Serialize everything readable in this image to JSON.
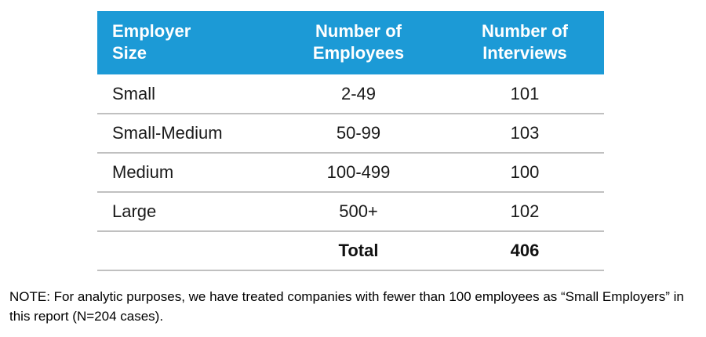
{
  "chart_data": {
    "type": "table",
    "columns": [
      "Employer Size",
      "Number of Employees",
      "Number of Interviews"
    ],
    "rows": [
      {
        "employer_size": "Small",
        "number_of_employees": "2-49",
        "number_of_interviews": "101"
      },
      {
        "employer_size": "Small-Medium",
        "number_of_employees": "50-99",
        "number_of_interviews": "103"
      },
      {
        "employer_size": "Medium",
        "number_of_employees": "100-499",
        "number_of_interviews": "100"
      },
      {
        "employer_size": "Large",
        "number_of_employees": "500+",
        "number_of_interviews": "102"
      }
    ],
    "total_row": {
      "label": "Total",
      "number_of_interviews": "406"
    }
  },
  "note": "NOTE: For analytic purposes, we have treated companies with fewer than 100 employees as “Small Employers” in this report (N=204 cases).",
  "colors": {
    "header_bg": "#1C9AD6",
    "header_text": "#FFFFFF",
    "row_divider": "#C0C0C0",
    "body_text": "#1A1A1A",
    "background": "#FFFFFF"
  }
}
